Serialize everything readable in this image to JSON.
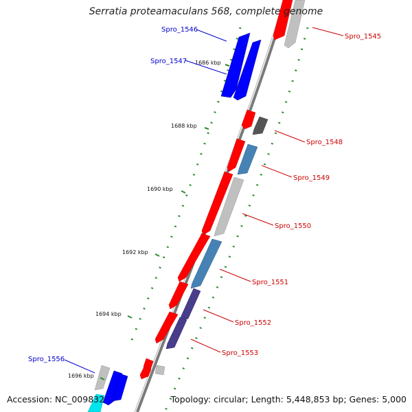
{
  "title": "Serratia proteamaculans 568, complete genome",
  "footer": {
    "accession": "Accession: NC_009832",
    "topology": "Topology: circular; Length: 5,448,853 bp; Genes: 5,000"
  },
  "colors": {
    "backbone": "#808080",
    "tick": "#2e8b2e",
    "forward_gene": "#ff0000",
    "reverse_gene": "#0000ff",
    "label_forward": "#cc0000",
    "label_reverse": "#0000cc",
    "gray_gene": "#c0c0c0",
    "steel_gene": "#4682b4",
    "purple_gene": "#483d8b",
    "dark_gene": "#555555",
    "cyan_gene": "#00e5ee"
  },
  "kbp_labels": [
    "1686 kbp",
    "1688 kbp",
    "1690 kbp",
    "1692 kbp",
    "1694 kbp",
    "1696 kbp"
  ],
  "gene_labels": {
    "spro_1545": "Spro_1545",
    "spro_1546": "Spro_1546",
    "spro_1547": "Spro_1547",
    "spro_1548": "Spro_1548",
    "spro_1549": "Spro_1549",
    "spro_1550": "Spro_1550",
    "spro_1551": "Spro_1551",
    "spro_1552": "Spro_1552",
    "spro_1553": "Spro_1553",
    "spro_1556": "Spro_1556"
  }
}
